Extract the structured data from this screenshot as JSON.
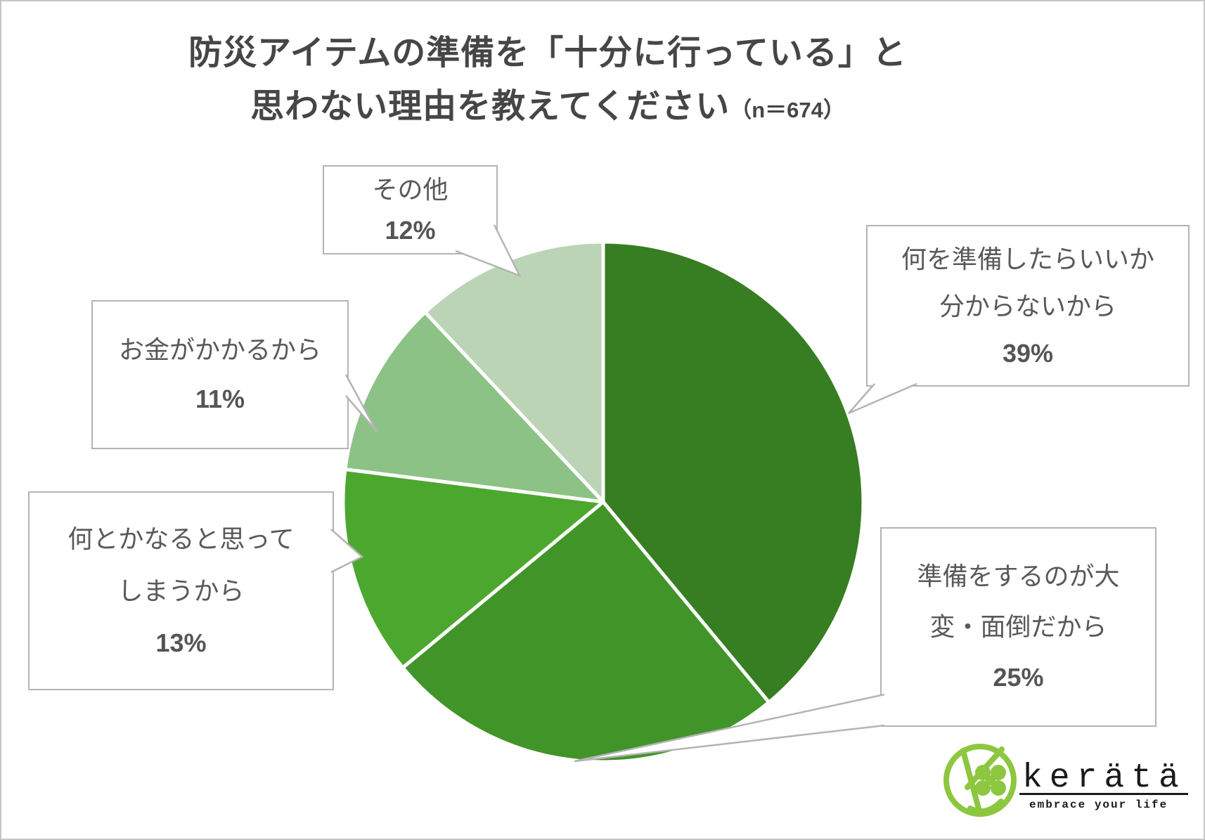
{
  "title": {
    "line1": "防災アイテムの準備を「十分に行っている」と",
    "line2": "思わない理由を教えてください",
    "n_suffix": "（n＝674）"
  },
  "chart_data": {
    "type": "pie",
    "labels": [
      "何を準備したらいいか分からないから",
      "準備をするのが大変・面倒だから",
      "何とかなると思ってしまうから",
      "お金がかかるから",
      "その他"
    ],
    "values": [
      39,
      25,
      13,
      11,
      12
    ],
    "unit": "%",
    "colors": [
      "#377D21",
      "#419428",
      "#4CA72E",
      "#8CC286",
      "#BCD4B6"
    ],
    "start_angle": "top",
    "direction": "clockwise",
    "slice_border_color": "#ffffff",
    "title": "防災アイテムの準備を「十分に行っている」と思わない理由を教えてください",
    "n": "674",
    "legend": "callout-labels"
  },
  "callouts": {
    "c39": {
      "lines": [
        "何を準備したらいいか",
        "分からないから"
      ],
      "pct": "39%"
    },
    "c25": {
      "lines": [
        "準備をするのが大",
        "変・面倒だから"
      ],
      "pct": "25%"
    },
    "c13": {
      "lines": [
        "何とかなると思って",
        "しまうから"
      ],
      "pct": "13%"
    },
    "c11": {
      "lines": [
        "お金がかかるから"
      ],
      "pct": "11%"
    },
    "c12": {
      "lines": [
        "その他"
      ],
      "pct": "12%"
    }
  },
  "styles": {
    "callout_border_color": "#b4b4b4",
    "text_color": "#595959",
    "title_color": "#464646"
  },
  "logo": {
    "brand": "kerätä",
    "tagline": "embrace your life",
    "brand_color": "#8DC63F"
  }
}
